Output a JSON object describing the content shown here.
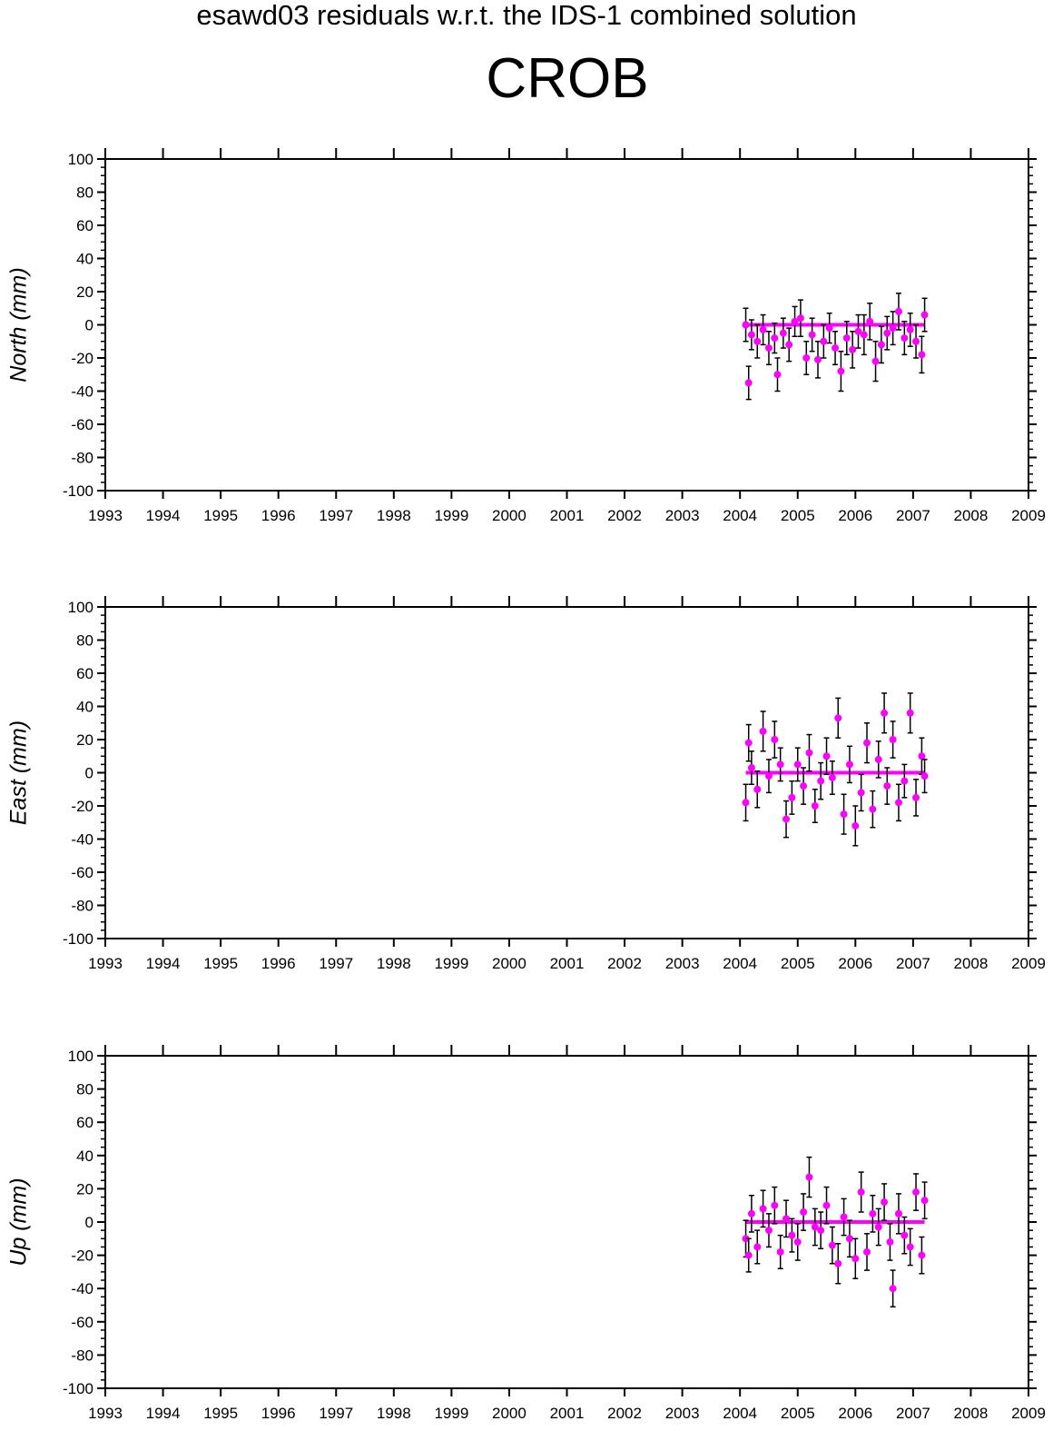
{
  "figure": {
    "supertitle": "esawd03 residuals w.r.t. the IDS-1 combined solution",
    "station": "CROB"
  },
  "colors": {
    "point": "#ff00ff",
    "errorbar": "#000000",
    "axis": "#000000"
  },
  "chart_data": [
    {
      "type": "scatter",
      "ylabel": "North (mm)",
      "xlim": [
        1993,
        2009
      ],
      "ylim": [
        -100,
        100
      ],
      "x_ticks": [
        "1993",
        "1994",
        "1995",
        "1996",
        "1997",
        "1998",
        "1999",
        "2000",
        "2001",
        "2002",
        "2003",
        "2004",
        "2005",
        "2006",
        "2007",
        "2008",
        "2009"
      ],
      "y_ticks": [
        "100",
        "80",
        "60",
        "40",
        "20",
        "0",
        "-20",
        "-40",
        "-60",
        "-80",
        "-100"
      ],
      "grid": false,
      "series": [
        {
          "x": [
            2004.1,
            2004.15,
            2004.2,
            2004.3,
            2004.4,
            2004.5,
            2004.6,
            2004.65,
            2004.75,
            2004.85,
            2004.95,
            2005.05,
            2005.15,
            2005.25,
            2005.35,
            2005.45,
            2005.55,
            2005.65,
            2005.75,
            2005.85,
            2005.95,
            2006.05,
            2006.15,
            2006.25,
            2006.35,
            2006.45,
            2006.55,
            2006.65,
            2006.75,
            2006.85,
            2006.95,
            2007.05,
            2007.15,
            2007.2
          ],
          "y": [
            0,
            -35,
            -6,
            -10,
            -3,
            -14,
            -8,
            -30,
            -5,
            -12,
            2,
            4,
            -20,
            -6,
            -21,
            -10,
            -2,
            -14,
            -28,
            -8,
            -15,
            -4,
            -6,
            2,
            -22,
            -12,
            -5,
            -2,
            8,
            -8,
            -3,
            -10,
            -18,
            6
          ],
          "err": [
            10,
            10,
            9,
            10,
            9,
            10,
            9,
            10,
            9,
            10,
            9,
            11,
            10,
            10,
            11,
            10,
            9,
            10,
            12,
            10,
            11,
            10,
            12,
            11,
            12,
            11,
            10,
            10,
            11,
            10,
            10,
            10,
            11,
            10
          ]
        }
      ]
    },
    {
      "type": "scatter",
      "ylabel": "East (mm)",
      "xlim": [
        1993,
        2009
      ],
      "ylim": [
        -100,
        100
      ],
      "x_ticks": [
        "1993",
        "1994",
        "1995",
        "1996",
        "1997",
        "1998",
        "1999",
        "2000",
        "2001",
        "2002",
        "2003",
        "2004",
        "2005",
        "2006",
        "2007",
        "2008",
        "2009"
      ],
      "y_ticks": [
        "100",
        "80",
        "60",
        "40",
        "20",
        "0",
        "-20",
        "-40",
        "-60",
        "-80",
        "-100"
      ],
      "grid": false,
      "series": [
        {
          "x": [
            2004.1,
            2004.15,
            2004.2,
            2004.3,
            2004.4,
            2004.5,
            2004.6,
            2004.7,
            2004.8,
            2004.9,
            2005.0,
            2005.1,
            2005.2,
            2005.3,
            2005.4,
            2005.5,
            2005.6,
            2005.7,
            2005.8,
            2005.9,
            2006.0,
            2006.1,
            2006.2,
            2006.3,
            2006.4,
            2006.5,
            2006.55,
            2006.65,
            2006.75,
            2006.85,
            2006.95,
            2007.05,
            2007.15,
            2007.2
          ],
          "y": [
            -18,
            18,
            3,
            -10,
            25,
            -2,
            20,
            5,
            -28,
            -15,
            5,
            -8,
            12,
            -20,
            -5,
            10,
            -3,
            33,
            -25,
            5,
            -32,
            -12,
            18,
            -22,
            8,
            36,
            -8,
            20,
            -18,
            -5,
            36,
            -15,
            10,
            -2
          ],
          "err": [
            11,
            11,
            10,
            11,
            12,
            10,
            11,
            10,
            11,
            10,
            10,
            11,
            11,
            10,
            11,
            11,
            10,
            12,
            12,
            11,
            12,
            11,
            12,
            11,
            11,
            12,
            11,
            11,
            11,
            10,
            12,
            11,
            11,
            10
          ]
        }
      ]
    },
    {
      "type": "scatter",
      "ylabel": "Up (mm)",
      "xlim": [
        1993,
        2009
      ],
      "ylim": [
        -100,
        100
      ],
      "x_ticks": [
        "1993",
        "1994",
        "1995",
        "1996",
        "1997",
        "1998",
        "1999",
        "2000",
        "2001",
        "2002",
        "2003",
        "2004",
        "2005",
        "2006",
        "2007",
        "2008",
        "2009"
      ],
      "y_ticks": [
        "100",
        "80",
        "60",
        "40",
        "20",
        "0",
        "-20",
        "-40",
        "-60",
        "-80",
        "-100"
      ],
      "grid": false,
      "series": [
        {
          "x": [
            2004.1,
            2004.15,
            2004.2,
            2004.3,
            2004.4,
            2004.5,
            2004.6,
            2004.7,
            2004.8,
            2004.9,
            2005.0,
            2005.1,
            2005.2,
            2005.3,
            2005.4,
            2005.5,
            2005.6,
            2005.7,
            2005.8,
            2005.9,
            2006.0,
            2006.1,
            2006.2,
            2006.3,
            2006.4,
            2006.5,
            2006.6,
            2006.65,
            2006.75,
            2006.85,
            2006.95,
            2007.05,
            2007.15,
            2007.2
          ],
          "y": [
            -10,
            -20,
            5,
            -15,
            8,
            -5,
            10,
            -18,
            2,
            -8,
            -12,
            6,
            27,
            -3,
            -5,
            10,
            -14,
            -25,
            3,
            -10,
            -22,
            18,
            -18,
            5,
            -3,
            12,
            -12,
            -40,
            5,
            -8,
            -15,
            18,
            -20,
            13
          ],
          "err": [
            11,
            10,
            11,
            10,
            11,
            10,
            11,
            10,
            11,
            10,
            11,
            11,
            12,
            11,
            11,
            11,
            11,
            12,
            11,
            11,
            12,
            12,
            11,
            11,
            11,
            11,
            11,
            11,
            12,
            11,
            11,
            11,
            11,
            11
          ]
        }
      ]
    }
  ]
}
